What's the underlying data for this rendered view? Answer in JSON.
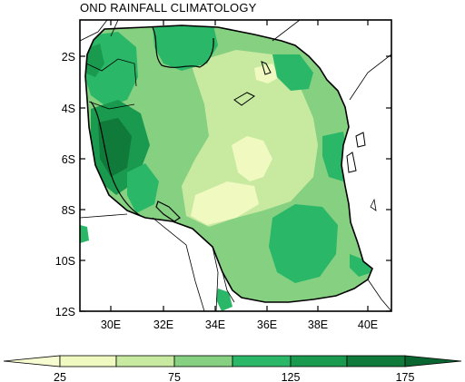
{
  "title": "OND RAINFALL CLIMATOLOGY",
  "map": {
    "type": "filled-contour",
    "region": "Tanzania",
    "lon_ticks": [
      "30E",
      "32E",
      "34E",
      "36E",
      "38E",
      "40E"
    ],
    "lat_ticks": [
      "2S",
      "4S",
      "6S",
      "8S",
      "10S",
      "12S"
    ]
  },
  "colorbar": {
    "labels": [
      "25",
      "75",
      "125",
      "175"
    ],
    "levels": [
      25,
      50,
      75,
      100,
      125,
      150,
      175
    ],
    "colors": [
      "#f6fbd0",
      "#f0f9c0",
      "#c8eaa0",
      "#86d081",
      "#2ab768",
      "#1a9a4e",
      "#0f7a3a",
      "#0a6630"
    ]
  },
  "legend_colors": {
    "lt25": "#f6fbd0",
    "c25_50": "#f0f9c0",
    "c50_75": "#c8eaa0",
    "c75_100": "#86d081",
    "c100_125": "#2ab768",
    "c125_150": "#1a9a4e",
    "c150_175": "#0f7a3a",
    "gt175": "#0a6630"
  }
}
